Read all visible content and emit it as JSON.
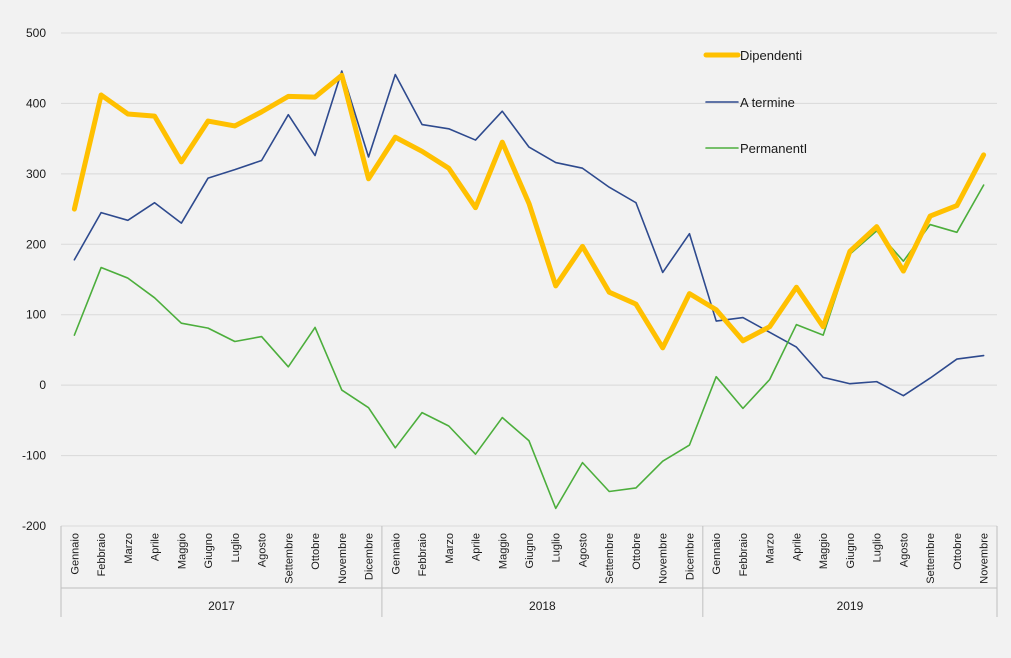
{
  "chart_data": {
    "type": "line",
    "title": "",
    "xlabel": "",
    "ylabel": "",
    "ylim": [
      -200,
      500
    ],
    "yticks": [
      500,
      400,
      300,
      200,
      100,
      0,
      -100,
      -200
    ],
    "grid": true,
    "legend_position": "top-right",
    "years": [
      {
        "label": "2017",
        "start": 0,
        "end": 11
      },
      {
        "label": "2018",
        "start": 12,
        "end": 23
      },
      {
        "label": "2019",
        "start": 24,
        "end": 34
      }
    ],
    "categories": [
      "Gennaio",
      "Febbraio",
      "Marzo",
      "Aprile",
      "Maggio",
      "Giugno",
      "Luglio",
      "Agosto",
      "Settembre",
      "Ottobre",
      "Novembre",
      "Dicembre",
      "Gennaio",
      "Febbraio",
      "Marzo",
      "Aprile",
      "Maggio",
      "Giugno",
      "Luglio",
      "Agosto",
      "Settembre",
      "Ottobre",
      "Novembre",
      "Dicembre",
      "Gennaio",
      "Febbraio",
      "Marzo",
      "Aprile",
      "Maggio",
      "Giugno",
      "Luglio",
      "Agosto",
      "Settembre",
      "Ottobre",
      "Novembre"
    ],
    "series": [
      {
        "name": "Dipendenti",
        "color": "#ffc000",
        "width": 5,
        "values": [
          250,
          412,
          385,
          382,
          317,
          375,
          368,
          388,
          410,
          409,
          440,
          293,
          352,
          332,
          308,
          252,
          345,
          258,
          141,
          197,
          132,
          115,
          53,
          130,
          107,
          63,
          83,
          139,
          83,
          190,
          225,
          162,
          240,
          255,
          327
        ]
      },
      {
        "name": "A termine",
        "color": "#2e4a8e",
        "width": 1.6,
        "values": [
          178,
          245,
          234,
          259,
          230,
          294,
          306,
          319,
          384,
          326,
          446,
          324,
          441,
          370,
          364,
          348,
          389,
          338,
          316,
          308,
          281,
          259,
          160,
          215,
          91,
          96,
          75,
          54,
          11,
          2,
          5,
          -15,
          10,
          37,
          42
        ]
      },
      {
        "name": "PermanentI",
        "color": "#4cae3c",
        "width": 1.6,
        "values": [
          71,
          167,
          152,
          124,
          88,
          81,
          62,
          69,
          26,
          82,
          -7,
          -32,
          -89,
          -39,
          -58,
          -98,
          -46,
          -79,
          -175,
          -110,
          -151,
          -146,
          -108,
          -85,
          12,
          -33,
          8,
          86,
          71,
          186,
          219,
          176,
          228,
          217,
          284
        ]
      }
    ]
  }
}
